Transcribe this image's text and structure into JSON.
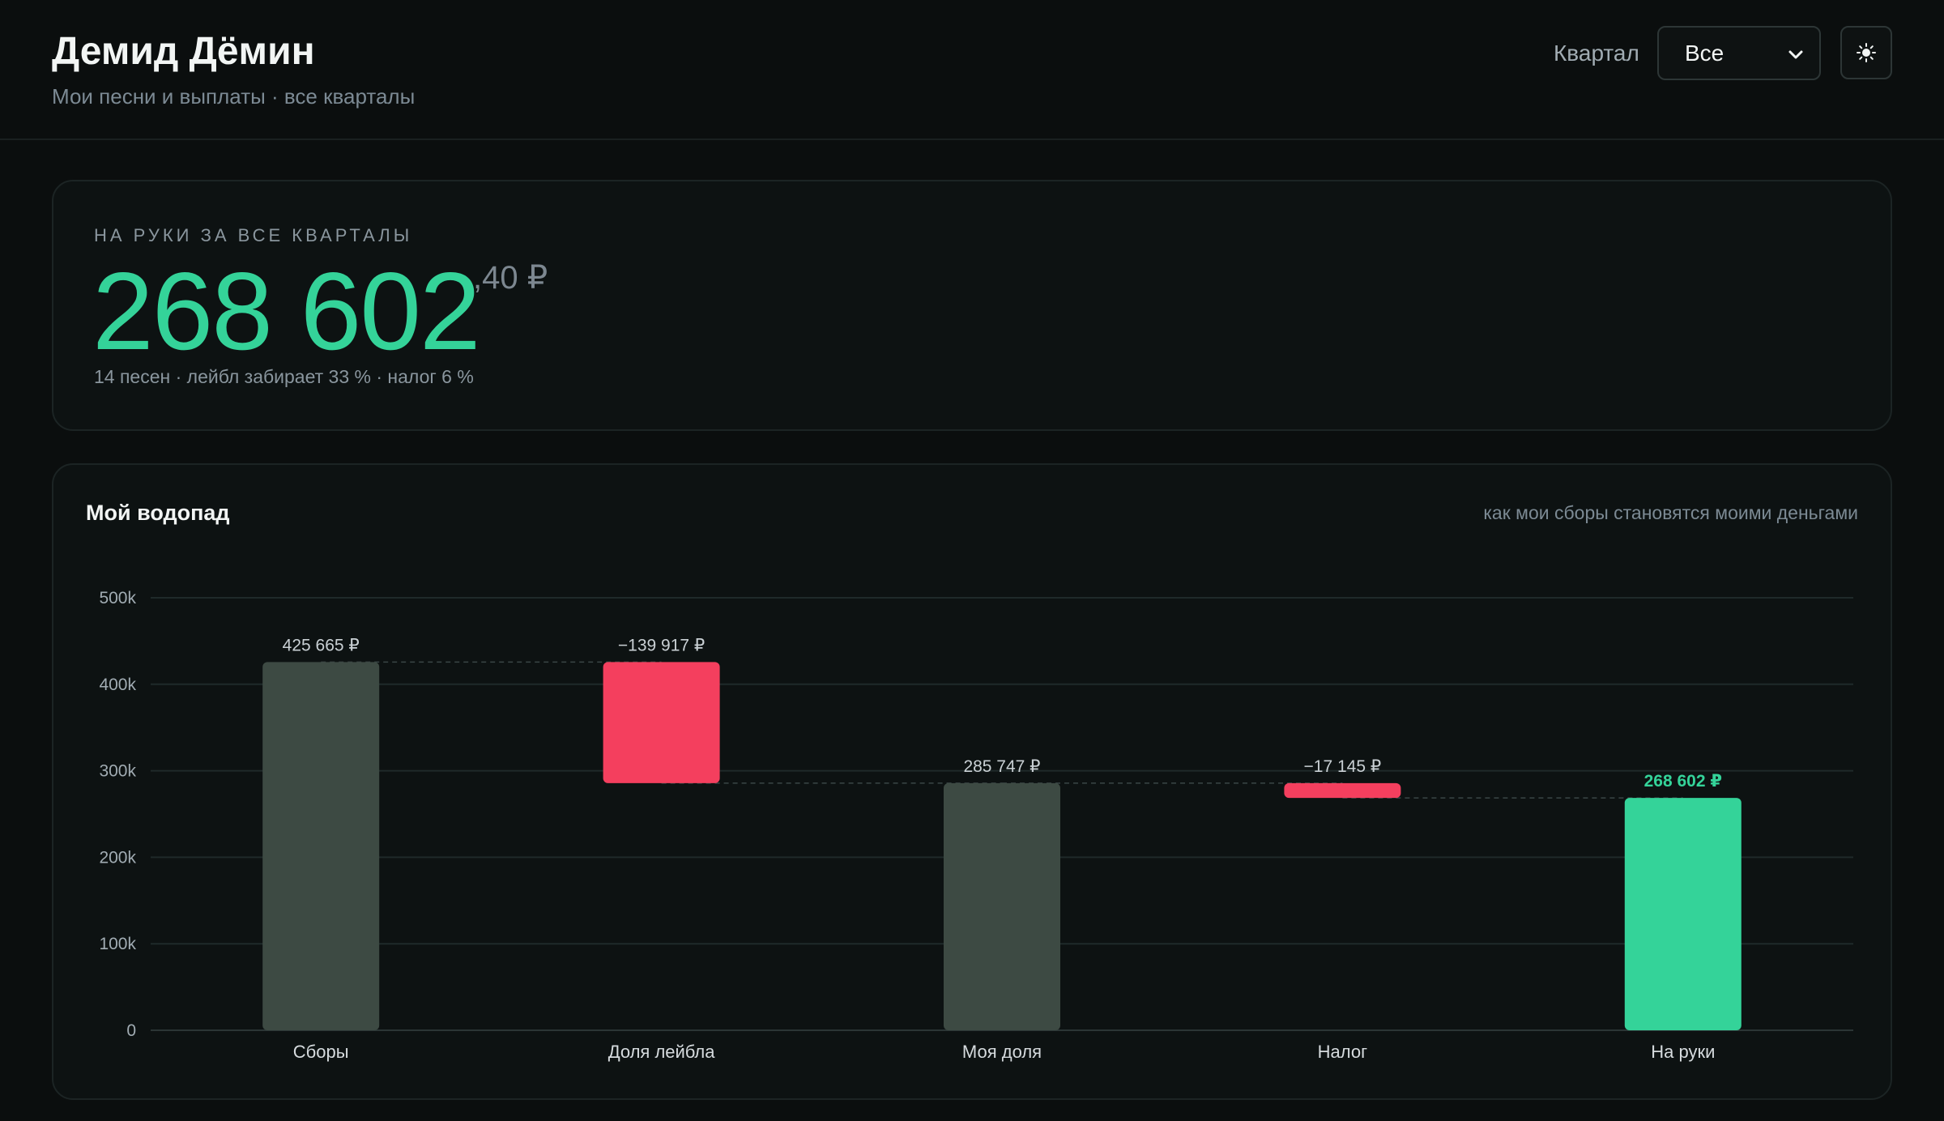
{
  "header": {
    "title": "Демид Дёмин",
    "subtitle": "Мои песни и выплаты · все кварталы",
    "quarter_label": "Квартал",
    "quarter_value": "Все",
    "theme_icon": "sun-icon"
  },
  "kpi": {
    "label": "НА РУКИ ЗА ВСЕ КВАРТАЛЫ",
    "value": "268 602",
    "fraction": ",40 ₽",
    "note": "14 песен · лейбл забирает 33 % · налог 6 %"
  },
  "chart_card": {
    "title": "Мой водопад",
    "caption": "как мои сборы становятся моими деньгами"
  },
  "colors": {
    "total": "#3d4a43",
    "negative": "#f43f5e",
    "final": "#34d399"
  },
  "chart_data": {
    "type": "bar",
    "subtype": "waterfall",
    "categories": [
      "Сборы",
      "Доля лейбла",
      "Моя доля",
      "Налог",
      "На руки"
    ],
    "steps": [
      {
        "label": "Сборы",
        "kind": "total",
        "value": 425665,
        "text": "425 665 ₽"
      },
      {
        "label": "Доля лейбла",
        "kind": "delta",
        "value": -139917,
        "text": "−139 917 ₽"
      },
      {
        "label": "Моя доля",
        "kind": "total",
        "value": 285747,
        "text": "285 747 ₽"
      },
      {
        "label": "Налог",
        "kind": "delta",
        "value": -17145,
        "text": "−17 145 ₽"
      },
      {
        "label": "На руки",
        "kind": "final",
        "value": 268602,
        "text": "268 602 ₽"
      }
    ],
    "y_ticks": [
      0,
      100000,
      200000,
      300000,
      400000,
      500000
    ],
    "y_tick_labels": [
      "0",
      "100k",
      "200k",
      "300k",
      "400k",
      "500k"
    ],
    "ylim": [
      0,
      500000
    ],
    "grid": true
  }
}
